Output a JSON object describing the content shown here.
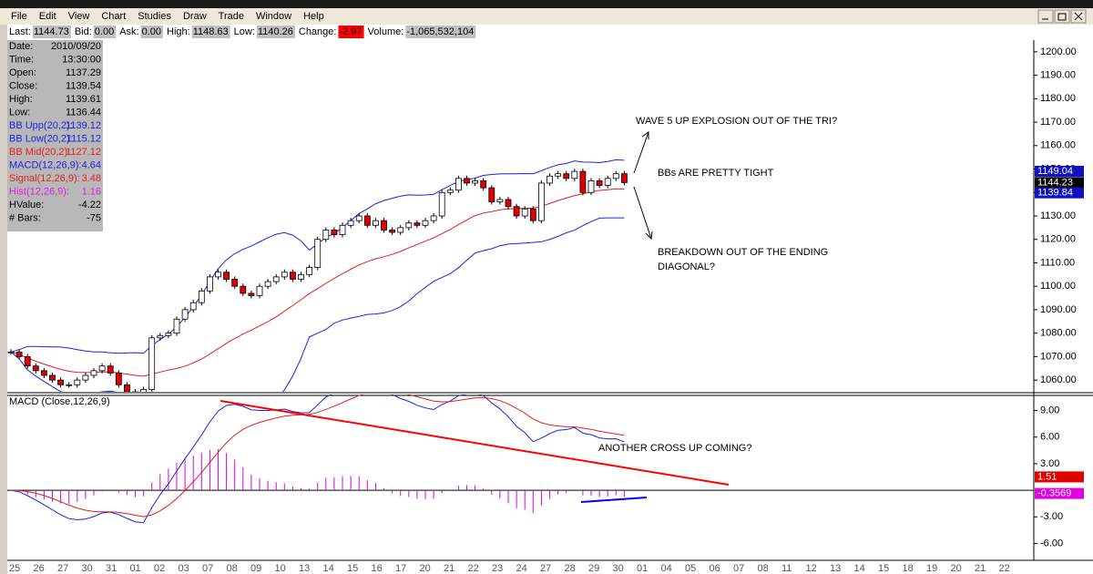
{
  "menu": [
    "File",
    "Edit",
    "View",
    "Chart",
    "Studies",
    "Draw",
    "Trade",
    "Window",
    "Help"
  ],
  "quote_bar": [
    {
      "label": "Last:",
      "value": "1144.73"
    },
    {
      "label": "Bid:",
      "value": "0.00"
    },
    {
      "label": "Ask:",
      "value": "0.00"
    },
    {
      "label": "High:",
      "value": "1148.63"
    },
    {
      "label": "Low:",
      "value": "1140.26"
    },
    {
      "label": "Change:",
      "value": "-2.97"
    },
    {
      "label": "Volume:",
      "value": "-1,065,532,104"
    }
  ],
  "data_window": [
    {
      "label": "Date:",
      "value": "2010/09/20",
      "color": "#000000"
    },
    {
      "label": "Time:",
      "value": "13:30:00",
      "color": "#000000"
    },
    {
      "label": "Open:",
      "value": "1137.29",
      "color": "#000000"
    },
    {
      "label": "Close:",
      "value": "1139.54",
      "color": "#000000"
    },
    {
      "label": "High:",
      "value": "1139.61",
      "color": "#000000"
    },
    {
      "label": "Low:",
      "value": "1136.44",
      "color": "#000000"
    },
    {
      "label": "BB Upp(20,2):",
      "value": "1139.12",
      "color": "#2020e0"
    },
    {
      "label": "BB Low(20,2):",
      "value": "1115.12",
      "color": "#2020e0"
    },
    {
      "label": "BB Mid(20,2):",
      "value": "1127.12",
      "color": "#e02020"
    },
    {
      "label": "MACD(12,26,9):",
      "value": "4.64",
      "color": "#2020e0"
    },
    {
      "label": "Signal(12,26,9):",
      "value": "3.48",
      "color": "#e02020"
    },
    {
      "label": "Hist(12,26,9):",
      "value": "1.16",
      "color": "#e020e0"
    },
    {
      "label": "HValue:",
      "value": "-4.22",
      "color": "#000000"
    },
    {
      "label": "# Bars:",
      "value": "-75",
      "color": "#000000"
    }
  ],
  "chart_data": {
    "type": "candlestick",
    "closes": [
      1072,
      1070,
      1066,
      1064,
      1062,
      1060,
      1058,
      1058,
      1060,
      1062,
      1064,
      1066,
      1063,
      1058,
      1055,
      1054,
      1056,
      1078,
      1079,
      1080,
      1086,
      1090,
      1093,
      1098,
      1104,
      1106,
      1103,
      1100,
      1097,
      1096,
      1100,
      1102,
      1104,
      1106,
      1103,
      1105,
      1108,
      1120,
      1124,
      1122,
      1126,
      1128,
      1130,
      1126,
      1128,
      1124,
      1123,
      1125,
      1127,
      1126,
      1128,
      1130,
      1140,
      1141,
      1146,
      1144,
      1145,
      1142,
      1136,
      1137,
      1134,
      1130,
      1133,
      1128,
      1144,
      1147,
      1148,
      1146,
      1149,
      1140,
      1145,
      1143,
      1146,
      1148,
      1144.23
    ],
    "ylim": [
      1055,
      1205
    ],
    "yticks": [
      {
        "value": 1200,
        "label": "1200.00"
      },
      {
        "value": 1190,
        "label": "1190.00"
      },
      {
        "value": 1180,
        "label": "1180.00"
      },
      {
        "value": 1170,
        "label": "1170.00"
      },
      {
        "value": 1160,
        "label": "1160.00"
      },
      {
        "value": 1150,
        "label": "1150.00"
      },
      {
        "value": 1140,
        "label": "1140.00"
      },
      {
        "value": 1130,
        "label": "1130.00"
      },
      {
        "value": 1120,
        "label": "1120.00"
      },
      {
        "value": 1110,
        "label": "1110.00"
      },
      {
        "value": 1100,
        "label": "1100.00"
      },
      {
        "value": 1090,
        "label": "1090.00"
      },
      {
        "value": 1080,
        "label": "1080.00"
      },
      {
        "value": 1070,
        "label": "1070.00"
      },
      {
        "value": 1060,
        "label": "1060.00"
      }
    ],
    "price_tags": [
      {
        "value": 1149.04,
        "label": "1149.04",
        "color": "#1010c0"
      },
      {
        "value": 1144.23,
        "label": "1144.23",
        "color": "#000000"
      },
      {
        "value": 1139.84,
        "label": "1139.84",
        "color": "#1010c0"
      }
    ],
    "annotations": [
      "WAVE 5 UP EXPLOSION OUT OF THE TRI?",
      "BBs ARE PRETTY TIGHT",
      "BREAKDOWN OUT OF THE ENDING",
      "DIAGONAL?"
    ],
    "macd_title": "MACD (Close,12,26,9)",
    "macd_annotation": "ANOTHER CROSS UP COMING?",
    "y2lim": [
      -7.9,
      10.7
    ],
    "y2ticks": [
      {
        "value": 9,
        "label": "9.00"
      },
      {
        "value": 6,
        "label": "6.00"
      },
      {
        "value": 3,
        "label": "3.00"
      },
      {
        "value": -3,
        "label": "-3.00"
      },
      {
        "value": -6,
        "label": "-6.00"
      }
    ],
    "macd_tags": [
      {
        "value": 1.51,
        "label": "1.51",
        "color": "#e00000"
      },
      {
        "value": -0.3569,
        "label": "-0.3569",
        "color": "#e000e0"
      }
    ],
    "dates": [
      "25",
      "26",
      "27",
      "30",
      "31",
      "01",
      "02",
      "03",
      "07",
      "08",
      "09",
      "10",
      "13",
      "14",
      "15",
      "16",
      "17",
      "20",
      "21",
      "22",
      "23",
      "24",
      "27",
      "28",
      "29",
      "30",
      "01",
      "04",
      "05",
      "06",
      "07",
      "08",
      "11",
      "12",
      "13",
      "14",
      "15",
      "18",
      "19",
      "20",
      "21",
      "22"
    ]
  }
}
